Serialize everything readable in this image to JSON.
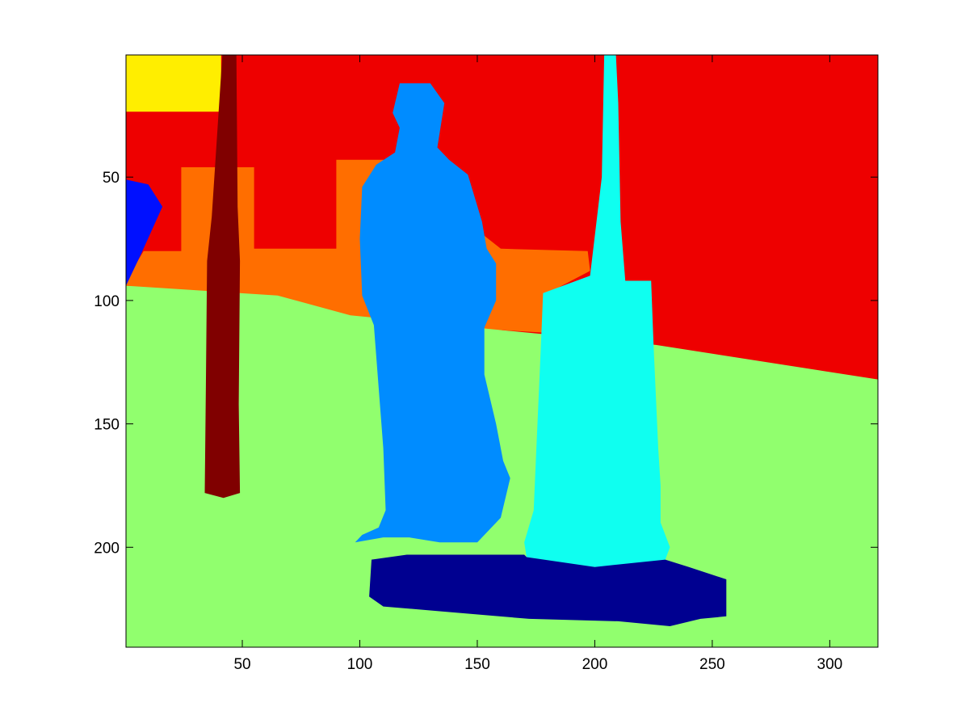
{
  "chart_data": {
    "type": "heatmap",
    "title": "",
    "xlabel": "",
    "ylabel": "",
    "xlim": [
      0.5,
      320.5
    ],
    "ylim": [
      0.5,
      240.5
    ],
    "y_axis_direction": "reversed",
    "grid": false,
    "x_ticks": [
      50,
      100,
      150,
      200,
      250,
      300
    ],
    "y_ticks": [
      50,
      100,
      150,
      200
    ],
    "x_tick_labels": [
      "50",
      "100",
      "150",
      "200",
      "250",
      "300"
    ],
    "y_tick_labels": [
      "50",
      "100",
      "150",
      "200"
    ],
    "colormap": "jet",
    "colors": {
      "background": "#ffffff",
      "plot_frame": "#000000",
      "yellow": "#ffee00",
      "red": "#ee0000",
      "orange": "#ff6e00",
      "blue": "#0010ff",
      "light_green": "#91ff6e",
      "dark_red": "#800000",
      "azure": "#008cff",
      "cyan": "#0ffff0",
      "navy": "#000090"
    },
    "regions": [
      {
        "name": "wall",
        "color": "red",
        "polygon": [
          [
            0.5,
            0.5
          ],
          [
            320.5,
            0.5
          ],
          [
            320.5,
            132
          ],
          [
            226,
            118
          ],
          [
            160,
            112
          ],
          [
            95,
            95
          ],
          [
            0.5,
            94
          ]
        ]
      },
      {
        "name": "top-left-patch",
        "color": "yellow",
        "polygon": [
          [
            0.5,
            0.5
          ],
          [
            41,
            0.5
          ],
          [
            41,
            23.5
          ],
          [
            0.5,
            23.5
          ]
        ]
      },
      {
        "name": "orange-band",
        "color": "orange",
        "polygon": [
          [
            0.5,
            92
          ],
          [
            8,
            80
          ],
          [
            24,
            80
          ],
          [
            24,
            46
          ],
          [
            55,
            46
          ],
          [
            55,
            79
          ],
          [
            90,
            79
          ],
          [
            90,
            43
          ],
          [
            112,
            43
          ],
          [
            160,
            79
          ],
          [
            197,
            80
          ],
          [
            198,
            88
          ],
          [
            180,
            97
          ],
          [
            178,
            113
          ],
          [
            160,
            112
          ],
          [
            96,
            106
          ],
          [
            65,
            98
          ],
          [
            0.5,
            94
          ]
        ]
      },
      {
        "name": "blue-patch",
        "color": "blue",
        "polygon": [
          [
            0.5,
            51
          ],
          [
            10,
            53
          ],
          [
            16,
            62
          ],
          [
            7,
            81
          ],
          [
            0.5,
            94
          ]
        ]
      },
      {
        "name": "pole",
        "color": "dark_red",
        "polygon": [
          [
            41.5,
            0.5
          ],
          [
            47.5,
            0.5
          ],
          [
            48,
            62
          ],
          [
            49,
            84
          ],
          [
            48.5,
            142
          ],
          [
            49,
            178
          ],
          [
            42,
            180
          ],
          [
            34,
            178
          ],
          [
            34.5,
            135
          ],
          [
            35,
            84
          ],
          [
            37,
            66
          ]
        ]
      },
      {
        "name": "person",
        "color": "azure",
        "polygon": [
          [
            117,
            12
          ],
          [
            130,
            12
          ],
          [
            136,
            20
          ],
          [
            133,
            38
          ],
          [
            138,
            43
          ],
          [
            146,
            49
          ],
          [
            152,
            68
          ],
          [
            154,
            79
          ],
          [
            158,
            85
          ],
          [
            158,
            100
          ],
          [
            153,
            111
          ],
          [
            153,
            130
          ],
          [
            158,
            150
          ],
          [
            161,
            165
          ],
          [
            164,
            172
          ],
          [
            160,
            188
          ],
          [
            150,
            198
          ],
          [
            134,
            198
          ],
          [
            121,
            196
          ],
          [
            110,
            196
          ],
          [
            98,
            198
          ],
          [
            101,
            195
          ],
          [
            108,
            192
          ],
          [
            111,
            185
          ],
          [
            110,
            160
          ],
          [
            106,
            110
          ],
          [
            101,
            98
          ],
          [
            100,
            75
          ],
          [
            101,
            54
          ],
          [
            107,
            45
          ],
          [
            115,
            40
          ],
          [
            117,
            30
          ],
          [
            114,
            24
          ]
        ]
      },
      {
        "name": "monument",
        "color": "cyan",
        "polygon": [
          [
            204,
            0.5
          ],
          [
            209,
            0.5
          ],
          [
            210,
            20
          ],
          [
            211,
            68
          ],
          [
            213,
            92
          ],
          [
            224,
            92
          ],
          [
            225,
            118
          ],
          [
            227,
            160
          ],
          [
            228,
            175
          ],
          [
            228,
            190
          ],
          [
            232,
            200
          ],
          [
            230,
            205
          ],
          [
            215,
            207
          ],
          [
            200,
            208
          ],
          [
            185,
            206
          ],
          [
            171,
            204
          ],
          [
            170,
            198
          ],
          [
            174,
            185
          ],
          [
            175,
            163
          ],
          [
            177,
            120
          ],
          [
            178,
            97
          ],
          [
            198,
            90
          ],
          [
            203,
            50
          ]
        ]
      },
      {
        "name": "monument-shadow",
        "color": "navy",
        "polygon": [
          [
            105,
            205
          ],
          [
            120,
            203
          ],
          [
            170,
            203
          ],
          [
            171,
            204
          ],
          [
            200,
            208
          ],
          [
            230,
            205
          ],
          [
            240,
            208
          ],
          [
            256,
            213
          ],
          [
            256,
            228
          ],
          [
            245,
            229
          ],
          [
            232,
            232
          ],
          [
            210,
            230
          ],
          [
            172,
            229
          ],
          [
            135,
            226
          ],
          [
            110,
            224
          ],
          [
            104,
            220
          ]
        ]
      }
    ],
    "default_region_color": "light_green"
  }
}
